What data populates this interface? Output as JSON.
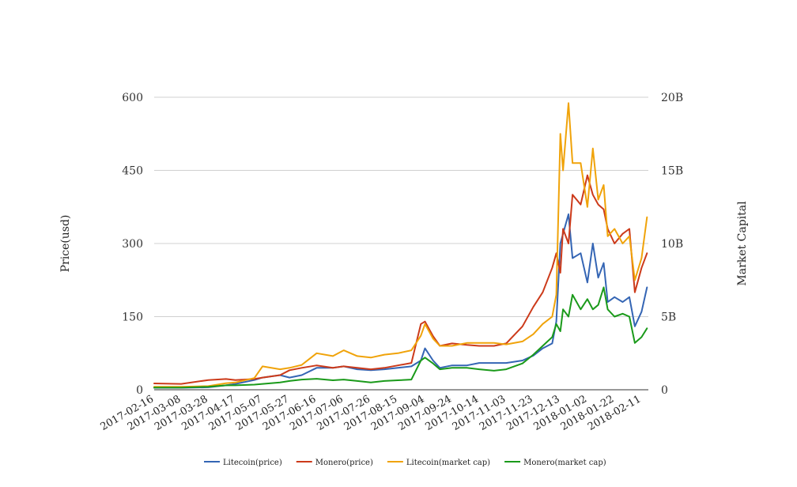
{
  "chart_data": {
    "type": "line",
    "title": "",
    "xlabel": "",
    "ylabel": "Price(usd)",
    "y2label": "Market Capital",
    "ylim": [
      0,
      600
    ],
    "y2lim": [
      0,
      20000000000
    ],
    "y_ticks": [
      "0",
      "150",
      "300",
      "450",
      "600"
    ],
    "y2_ticks": [
      "0",
      "5B",
      "10B",
      "15B",
      "20B"
    ],
    "x_ticks": [
      "2017-02-16",
      "2017-03-08",
      "2017-03-28",
      "2017-04-17",
      "2017-05-07",
      "2017-05-27",
      "2017-06-16",
      "2017-07-06",
      "2017-07-26",
      "2017-08-15",
      "2017-09-04",
      "2017-09-24",
      "2017-10-14",
      "2017-11-03",
      "2017-11-23",
      "2017-12-13",
      "2018-01-02",
      "2018-01-22",
      "2018-02-11"
    ],
    "grid": true,
    "legend_position": "bottom",
    "series": [
      {
        "name": "Litecoin(price)",
        "axis": "left",
        "color": "#3465b4",
        "x": [
          "2017-02-16",
          "2017-03-08",
          "2017-03-28",
          "2017-04-10",
          "2017-04-17",
          "2017-05-01",
          "2017-05-07",
          "2017-05-20",
          "2017-05-27",
          "2017-06-05",
          "2017-06-16",
          "2017-06-28",
          "2017-07-06",
          "2017-07-16",
          "2017-07-26",
          "2017-08-05",
          "2017-08-15",
          "2017-08-25",
          "2017-09-01",
          "2017-09-04",
          "2017-09-10",
          "2017-09-15",
          "2017-09-24",
          "2017-10-05",
          "2017-10-14",
          "2017-10-25",
          "2017-11-03",
          "2017-11-15",
          "2017-11-23",
          "2017-11-30",
          "2017-12-07",
          "2017-12-10",
          "2017-12-13",
          "2017-12-15",
          "2017-12-19",
          "2017-12-22",
          "2017-12-28",
          "2018-01-02",
          "2018-01-06",
          "2018-01-10",
          "2018-01-14",
          "2018-01-17",
          "2018-01-22",
          "2018-01-28",
          "2018-02-02",
          "2018-02-06",
          "2018-02-11",
          "2018-02-15"
        ],
        "y": [
          4,
          4,
          5,
          9,
          12,
          20,
          25,
          30,
          25,
          30,
          45,
          45,
          48,
          42,
          40,
          42,
          45,
          48,
          60,
          85,
          60,
          45,
          50,
          50,
          55,
          55,
          55,
          60,
          70,
          85,
          95,
          140,
          300,
          320,
          360,
          270,
          280,
          220,
          300,
          230,
          260,
          180,
          190,
          180,
          190,
          130,
          160,
          210
        ]
      },
      {
        "name": "Monero(price)",
        "axis": "left",
        "color": "#cc3a1a",
        "x": [
          "2017-02-16",
          "2017-03-08",
          "2017-03-28",
          "2017-04-10",
          "2017-04-17",
          "2017-05-01",
          "2017-05-07",
          "2017-05-20",
          "2017-05-27",
          "2017-06-05",
          "2017-06-16",
          "2017-06-28",
          "2017-07-06",
          "2017-07-16",
          "2017-07-26",
          "2017-08-05",
          "2017-08-15",
          "2017-08-25",
          "2017-09-01",
          "2017-09-04",
          "2017-09-10",
          "2017-09-15",
          "2017-09-24",
          "2017-10-05",
          "2017-10-14",
          "2017-10-25",
          "2017-11-03",
          "2017-11-15",
          "2017-11-23",
          "2017-11-30",
          "2017-12-07",
          "2017-12-10",
          "2017-12-13",
          "2017-12-15",
          "2017-12-19",
          "2017-12-22",
          "2017-12-28",
          "2018-01-02",
          "2018-01-06",
          "2018-01-10",
          "2018-01-14",
          "2018-01-17",
          "2018-01-22",
          "2018-01-28",
          "2018-02-02",
          "2018-02-06",
          "2018-02-11",
          "2018-02-15"
        ],
        "y": [
          13,
          12,
          20,
          22,
          20,
          22,
          25,
          30,
          40,
          45,
          50,
          45,
          48,
          45,
          42,
          45,
          50,
          55,
          135,
          140,
          110,
          90,
          95,
          92,
          90,
          90,
          95,
          130,
          170,
          200,
          250,
          280,
          240,
          330,
          300,
          400,
          380,
          440,
          400,
          380,
          370,
          330,
          300,
          320,
          330,
          200,
          250,
          280
        ]
      },
      {
        "name": "Litecoin(market cap)",
        "axis": "right",
        "color": "#f0a30a",
        "x": [
          "2017-02-16",
          "2017-03-08",
          "2017-03-28",
          "2017-04-10",
          "2017-04-17",
          "2017-05-01",
          "2017-05-07",
          "2017-05-20",
          "2017-05-27",
          "2017-06-05",
          "2017-06-16",
          "2017-06-28",
          "2017-07-06",
          "2017-07-16",
          "2017-07-26",
          "2017-08-05",
          "2017-08-15",
          "2017-08-25",
          "2017-09-01",
          "2017-09-04",
          "2017-09-10",
          "2017-09-15",
          "2017-09-24",
          "2017-10-05",
          "2017-10-14",
          "2017-10-25",
          "2017-11-03",
          "2017-11-15",
          "2017-11-23",
          "2017-11-30",
          "2017-12-07",
          "2017-12-10",
          "2017-12-13",
          "2017-12-15",
          "2017-12-19",
          "2017-12-22",
          "2017-12-28",
          "2018-01-02",
          "2018-01-06",
          "2018-01-10",
          "2018-01-14",
          "2018-01-17",
          "2018-01-22",
          "2018-01-28",
          "2018-02-02",
          "2018-02-06",
          "2018-02-11",
          "2018-02-15"
        ],
        "y": [
          200000000,
          200000000,
          250000000,
          450000000,
          500000000,
          800000000,
          1600000000,
          1400000000,
          1500000000,
          1700000000,
          2500000000,
          2300000000,
          2700000000,
          2300000000,
          2200000000,
          2400000000,
          2500000000,
          2700000000,
          3700000000,
          4500000000,
          3500000000,
          3000000000,
          3000000000,
          3200000000,
          3200000000,
          3200000000,
          3100000000,
          3300000000,
          3800000000,
          4500000000,
          5000000000,
          6500000000,
          17500000000,
          15000000000,
          19600000000,
          15500000000,
          15500000000,
          12500000000,
          16500000000,
          13000000000,
          14000000000,
          10500000000,
          11000000000,
          10000000000,
          10500000000,
          7500000000,
          9000000000,
          11800000000
        ]
      },
      {
        "name": "Monero(market cap)",
        "axis": "right",
        "color": "#1a9a1a",
        "x": [
          "2017-02-16",
          "2017-03-08",
          "2017-03-28",
          "2017-04-10",
          "2017-04-17",
          "2017-05-01",
          "2017-05-07",
          "2017-05-20",
          "2017-05-27",
          "2017-06-05",
          "2017-06-16",
          "2017-06-28",
          "2017-07-06",
          "2017-07-16",
          "2017-07-26",
          "2017-08-05",
          "2017-08-15",
          "2017-08-25",
          "2017-09-01",
          "2017-09-04",
          "2017-09-10",
          "2017-09-15",
          "2017-09-24",
          "2017-10-05",
          "2017-10-14",
          "2017-10-25",
          "2017-11-03",
          "2017-11-15",
          "2017-11-23",
          "2017-11-30",
          "2017-12-07",
          "2017-12-10",
          "2017-12-13",
          "2017-12-15",
          "2017-12-19",
          "2017-12-22",
          "2017-12-28",
          "2018-01-02",
          "2018-01-06",
          "2018-01-10",
          "2018-01-14",
          "2018-01-17",
          "2018-01-22",
          "2018-01-28",
          "2018-02-02",
          "2018-02-06",
          "2018-02-11",
          "2018-02-15"
        ],
        "y": [
          150000000,
          150000000,
          200000000,
          300000000,
          300000000,
          350000000,
          400000000,
          500000000,
          600000000,
          700000000,
          750000000,
          650000000,
          700000000,
          600000000,
          500000000,
          600000000,
          650000000,
          700000000,
          2000000000,
          2200000000,
          1800000000,
          1400000000,
          1500000000,
          1500000000,
          1400000000,
          1300000000,
          1400000000,
          1800000000,
          2400000000,
          3000000000,
          3600000000,
          4500000000,
          4000000000,
          5500000000,
          5000000000,
          6500000000,
          5500000000,
          6200000000,
          5500000000,
          5800000000,
          7000000000,
          5500000000,
          5000000000,
          5200000000,
          5000000000,
          3200000000,
          3600000000,
          4200000000
        ]
      }
    ]
  }
}
